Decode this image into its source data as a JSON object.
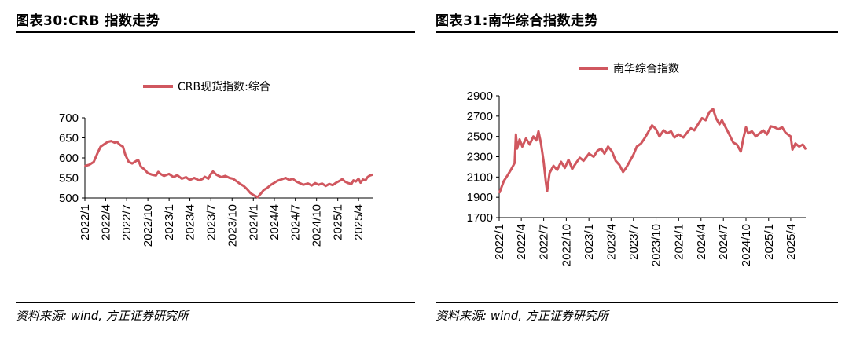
{
  "left": {
    "figure_title": "图表30:CRB 指数走势",
    "source": "资料来源: wind, 方正证券研究所",
    "chart_data": {
      "type": "line",
      "title": "",
      "xlabel": "",
      "ylabel": "",
      "ylim": [
        500,
        700
      ],
      "yticks": [
        500,
        550,
        600,
        650,
        700
      ],
      "xlim": [
        "2022-01-01",
        "2025-06-01"
      ],
      "xticks": [
        "2022/1",
        "2022/4",
        "2022/7",
        "2022/10",
        "2023/1",
        "2023/4",
        "2023/7",
        "2023/10",
        "2024/1",
        "2024/4",
        "2024/7",
        "2024/10",
        "2025/1",
        "2025/4"
      ],
      "grid": false,
      "legend": "top-center",
      "color": "#d0575f",
      "series": [
        {
          "name": "CRB现货指数:综合",
          "points": [
            [
              "2022-01-03",
              580
            ],
            [
              "2022-01-20",
              583
            ],
            [
              "2022-02-08",
              590
            ],
            [
              "2022-02-25",
              612
            ],
            [
              "2022-03-10",
              628
            ],
            [
              "2022-03-25",
              634
            ],
            [
              "2022-04-10",
              640
            ],
            [
              "2022-04-25",
              642
            ],
            [
              "2022-05-10",
              638
            ],
            [
              "2022-05-20",
              640
            ],
            [
              "2022-06-01",
              633
            ],
            [
              "2022-06-15",
              628
            ],
            [
              "2022-06-25",
              608
            ],
            [
              "2022-07-10",
              590
            ],
            [
              "2022-07-25",
              586
            ],
            [
              "2022-08-10",
              592
            ],
            [
              "2022-08-20",
              595
            ],
            [
              "2022-09-01",
              578
            ],
            [
              "2022-09-15",
              572
            ],
            [
              "2022-10-01",
              562
            ],
            [
              "2022-10-20",
              558
            ],
            [
              "2022-11-05",
              556
            ],
            [
              "2022-11-15",
              565
            ],
            [
              "2022-11-25",
              560
            ],
            [
              "2022-12-10",
              555
            ],
            [
              "2023-01-01",
              560
            ],
            [
              "2023-01-20",
              552
            ],
            [
              "2023-02-05",
              557
            ],
            [
              "2023-02-25",
              548
            ],
            [
              "2023-03-15",
              552
            ],
            [
              "2023-04-01",
              545
            ],
            [
              "2023-04-20",
              550
            ],
            [
              "2023-05-10",
              544
            ],
            [
              "2023-05-25",
              547
            ],
            [
              "2023-06-05",
              553
            ],
            [
              "2023-06-20",
              548
            ],
            [
              "2023-07-01",
              560
            ],
            [
              "2023-07-10",
              566
            ],
            [
              "2023-07-25",
              558
            ],
            [
              "2023-08-15",
              552
            ],
            [
              "2023-09-01",
              555
            ],
            [
              "2023-09-20",
              550
            ],
            [
              "2023-10-05",
              548
            ],
            [
              "2023-10-20",
              542
            ],
            [
              "2023-11-05",
              535
            ],
            [
              "2023-11-20",
              530
            ],
            [
              "2023-12-05",
              522
            ],
            [
              "2023-12-20",
              512
            ],
            [
              "2024-01-05",
              506
            ],
            [
              "2024-01-20",
              502
            ],
            [
              "2024-02-01",
              510
            ],
            [
              "2024-02-15",
              520
            ],
            [
              "2024-03-01",
              525
            ],
            [
              "2024-03-15",
              532
            ],
            [
              "2024-04-01",
              538
            ],
            [
              "2024-04-15",
              543
            ],
            [
              "2024-05-01",
              546
            ],
            [
              "2024-05-20",
              550
            ],
            [
              "2024-06-05",
              545
            ],
            [
              "2024-06-20",
              548
            ],
            [
              "2024-07-05",
              541
            ],
            [
              "2024-07-20",
              537
            ],
            [
              "2024-08-05",
              533
            ],
            [
              "2024-08-25",
              536
            ],
            [
              "2024-09-10",
              531
            ],
            [
              "2024-09-25",
              537
            ],
            [
              "2024-10-10",
              533
            ],
            [
              "2024-10-25",
              536
            ],
            [
              "2024-11-10",
              530
            ],
            [
              "2024-11-25",
              535
            ],
            [
              "2024-12-10",
              532
            ],
            [
              "2024-12-25",
              538
            ],
            [
              "2025-01-10",
              543
            ],
            [
              "2025-01-20",
              547
            ],
            [
              "2025-02-01",
              541
            ],
            [
              "2025-02-15",
              537
            ],
            [
              "2025-03-01",
              535
            ],
            [
              "2025-03-10",
              544
            ],
            [
              "2025-03-20",
              541
            ],
            [
              "2025-04-01",
              548
            ],
            [
              "2025-04-10",
              538
            ],
            [
              "2025-04-20",
              546
            ],
            [
              "2025-05-01",
              544
            ],
            [
              "2025-05-10",
              552
            ],
            [
              "2025-05-20",
              556
            ],
            [
              "2025-05-30",
              558
            ]
          ]
        }
      ]
    }
  },
  "right": {
    "figure_title": "图表31:南华综合指数走势",
    "source": "资料来源: wind, 方正证券研究所",
    "chart_data": {
      "type": "line",
      "title": "",
      "xlabel": "",
      "ylabel": "",
      "ylim": [
        1700,
        2900
      ],
      "yticks": [
        1700,
        1900,
        2100,
        2300,
        2500,
        2700,
        2900
      ],
      "xlim": [
        "2022-01-01",
        "2025-06-01"
      ],
      "xticks": [
        "2022/1",
        "2022/4",
        "2022/7",
        "2022/10",
        "2023/1",
        "2023/4",
        "2023/7",
        "2023/10",
        "2024/1",
        "2024/4",
        "2024/7",
        "2024/10",
        "2025/1",
        "2025/4"
      ],
      "grid": false,
      "legend": "top-center",
      "color": "#d0575f",
      "series": [
        {
          "name": "南华综合指数",
          "points": [
            [
              "2022-01-03",
              1950
            ],
            [
              "2022-01-20",
              2060
            ],
            [
              "2022-02-05",
              2120
            ],
            [
              "2022-02-20",
              2180
            ],
            [
              "2022-03-05",
              2240
            ],
            [
              "2022-03-10",
              2520
            ],
            [
              "2022-03-15",
              2380
            ],
            [
              "2022-03-25",
              2470
            ],
            [
              "2022-04-05",
              2400
            ],
            [
              "2022-04-20",
              2480
            ],
            [
              "2022-05-05",
              2420
            ],
            [
              "2022-05-20",
              2500
            ],
            [
              "2022-06-01",
              2460
            ],
            [
              "2022-06-10",
              2550
            ],
            [
              "2022-06-20",
              2430
            ],
            [
              "2022-07-01",
              2250
            ],
            [
              "2022-07-10",
              2050
            ],
            [
              "2022-07-15",
              1960
            ],
            [
              "2022-07-25",
              2140
            ],
            [
              "2022-08-10",
              2210
            ],
            [
              "2022-08-25",
              2170
            ],
            [
              "2022-09-10",
              2250
            ],
            [
              "2022-09-25",
              2190
            ],
            [
              "2022-10-10",
              2270
            ],
            [
              "2022-10-25",
              2180
            ],
            [
              "2022-11-10",
              2240
            ],
            [
              "2022-11-25",
              2290
            ],
            [
              "2022-12-10",
              2260
            ],
            [
              "2023-01-01",
              2330
            ],
            [
              "2023-01-20",
              2300
            ],
            [
              "2023-02-05",
              2360
            ],
            [
              "2023-02-20",
              2380
            ],
            [
              "2023-03-05",
              2330
            ],
            [
              "2023-03-20",
              2400
            ],
            [
              "2023-04-05",
              2350
            ],
            [
              "2023-04-20",
              2260
            ],
            [
              "2023-05-05",
              2220
            ],
            [
              "2023-05-20",
              2150
            ],
            [
              "2023-06-01",
              2190
            ],
            [
              "2023-06-15",
              2250
            ],
            [
              "2023-07-01",
              2320
            ],
            [
              "2023-07-15",
              2400
            ],
            [
              "2023-08-01",
              2430
            ],
            [
              "2023-08-15",
              2480
            ],
            [
              "2023-09-01",
              2550
            ],
            [
              "2023-09-15",
              2610
            ],
            [
              "2023-10-01",
              2570
            ],
            [
              "2023-10-15",
              2500
            ],
            [
              "2023-11-01",
              2560
            ],
            [
              "2023-11-15",
              2530
            ],
            [
              "2023-12-01",
              2550
            ],
            [
              "2023-12-15",
              2490
            ],
            [
              "2024-01-01",
              2520
            ],
            [
              "2024-01-20",
              2490
            ],
            [
              "2024-02-05",
              2540
            ],
            [
              "2024-02-20",
              2580
            ],
            [
              "2024-03-05",
              2560
            ],
            [
              "2024-03-20",
              2620
            ],
            [
              "2024-04-05",
              2680
            ],
            [
              "2024-04-20",
              2660
            ],
            [
              "2024-05-05",
              2740
            ],
            [
              "2024-05-20",
              2770
            ],
            [
              "2024-06-01",
              2680
            ],
            [
              "2024-06-15",
              2620
            ],
            [
              "2024-06-25",
              2660
            ],
            [
              "2024-07-10",
              2590
            ],
            [
              "2024-07-25",
              2520
            ],
            [
              "2024-08-10",
              2440
            ],
            [
              "2024-08-25",
              2420
            ],
            [
              "2024-09-10",
              2350
            ],
            [
              "2024-09-20",
              2480
            ],
            [
              "2024-10-01",
              2590
            ],
            [
              "2024-10-10",
              2530
            ],
            [
              "2024-10-25",
              2550
            ],
            [
              "2024-11-10",
              2500
            ],
            [
              "2024-11-25",
              2530
            ],
            [
              "2024-12-10",
              2560
            ],
            [
              "2024-12-25",
              2520
            ],
            [
              "2025-01-10",
              2600
            ],
            [
              "2025-01-25",
              2590
            ],
            [
              "2025-02-10",
              2570
            ],
            [
              "2025-02-25",
              2590
            ],
            [
              "2025-03-10",
              2540
            ],
            [
              "2025-03-20",
              2520
            ],
            [
              "2025-04-01",
              2500
            ],
            [
              "2025-04-08",
              2370
            ],
            [
              "2025-04-20",
              2430
            ],
            [
              "2025-05-05",
              2400
            ],
            [
              "2025-05-20",
              2420
            ],
            [
              "2025-05-30",
              2380
            ]
          ]
        }
      ]
    }
  }
}
